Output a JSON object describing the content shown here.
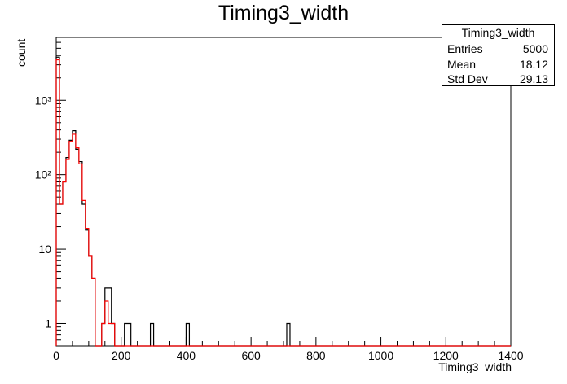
{
  "chart_data": {
    "type": "histogram",
    "title": "Timing3_width",
    "xlabel": "Timing3_width",
    "ylabel": "count",
    "xlim": [
      0,
      1400
    ],
    "ylim": [
      0.5,
      7000
    ],
    "yscale": "log",
    "grid": false,
    "x_ticks": [
      "0",
      "200",
      "400",
      "600",
      "800",
      "1000",
      "1200",
      "1400"
    ],
    "y_ticks": [
      "1",
      "10",
      "10²",
      "10³"
    ],
    "bin_width": 10,
    "series": [
      {
        "color": "#000000",
        "style": "step",
        "bins": [
          [
            0,
            3800
          ],
          [
            10,
            40
          ],
          [
            20,
            80
          ],
          [
            30,
            170
          ],
          [
            40,
            290
          ],
          [
            50,
            390
          ],
          [
            60,
            220
          ],
          [
            70,
            150
          ],
          [
            80,
            40
          ],
          [
            90,
            18
          ],
          [
            100,
            8
          ],
          [
            110,
            4
          ],
          [
            140,
            1
          ],
          [
            150,
            3
          ],
          [
            160,
            3
          ],
          [
            170,
            1
          ],
          [
            210,
            1
          ],
          [
            220,
            1
          ],
          [
            290,
            1
          ],
          [
            400,
            1
          ],
          [
            710,
            1
          ]
        ]
      },
      {
        "color": "#ff0000",
        "style": "step",
        "bins": [
          [
            0,
            3500
          ],
          [
            10,
            40
          ],
          [
            20,
            80
          ],
          [
            30,
            160
          ],
          [
            40,
            280
          ],
          [
            50,
            350
          ],
          [
            60,
            230
          ],
          [
            70,
            140
          ],
          [
            80,
            45
          ],
          [
            90,
            19
          ],
          [
            100,
            8
          ],
          [
            110,
            4
          ],
          [
            140,
            1
          ],
          [
            150,
            2
          ],
          [
            160,
            1
          ],
          [
            170,
            1
          ]
        ]
      }
    ],
    "stats_box": {
      "title": "Timing3_width",
      "rows": [
        {
          "label": "Entries",
          "value": "5000"
        },
        {
          "label": "Mean",
          "value": "18.12"
        },
        {
          "label": "Std Dev",
          "value": "29.13"
        }
      ]
    }
  }
}
